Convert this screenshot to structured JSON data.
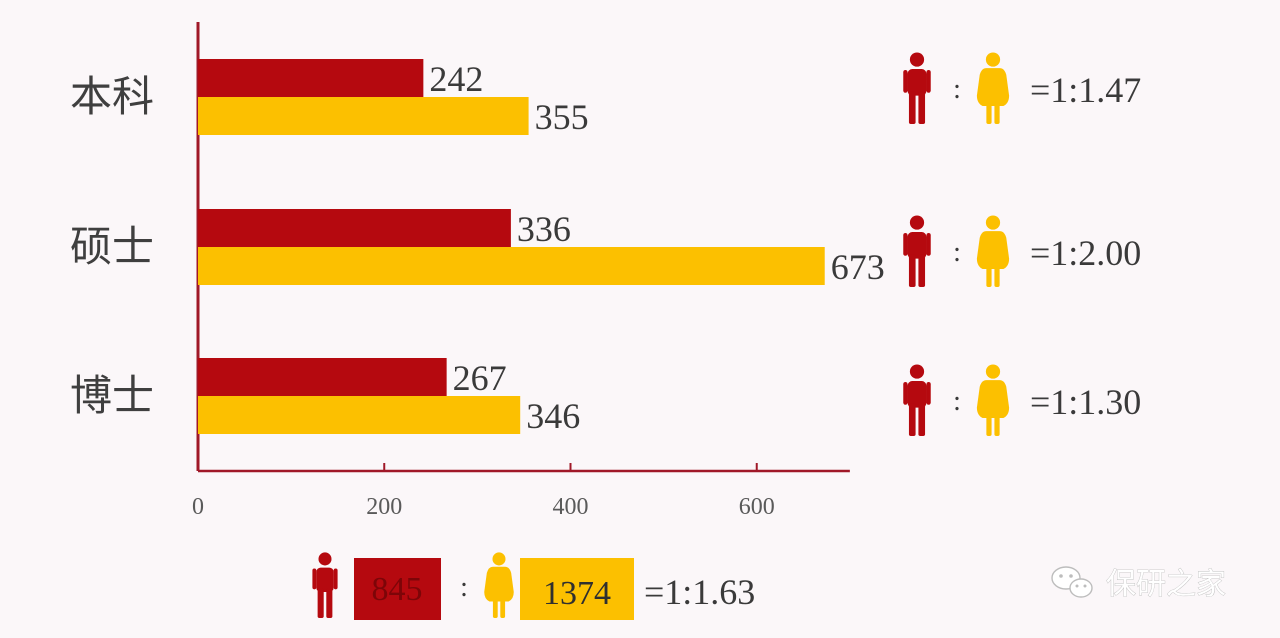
{
  "colors": {
    "male": "#b5090f",
    "female": "#fcc000",
    "axis": "#a01828",
    "background": "#fbf7f9"
  },
  "chart_data": {
    "type": "bar",
    "orientation": "horizontal",
    "categories": [
      "本科",
      "硕士",
      "博士"
    ],
    "series": [
      {
        "key": "male",
        "values": [
          242,
          336,
          267
        ]
      },
      {
        "key": "female",
        "values": [
          355,
          673,
          346
        ]
      }
    ],
    "xlim": [
      0,
      700
    ],
    "xticks": [
      0,
      200,
      400,
      600
    ],
    "xtick_labels": [
      "0",
      "200",
      "400",
      "600"
    ],
    "grid": false
  },
  "ratios": [
    {
      "category": "本科",
      "colon": ":",
      "text": "=1:1.47"
    },
    {
      "category": "硕士",
      "colon": ":",
      "text": "=1:2.00"
    },
    {
      "category": "博士",
      "colon": ":",
      "text": "=1:1.30"
    }
  ],
  "totals": {
    "male_total": "845",
    "colon": ":",
    "female_total": "1374",
    "ratio_text": "=1:1.63"
  },
  "watermark": {
    "text": "保研之家",
    "icon": "wechat-icon"
  }
}
